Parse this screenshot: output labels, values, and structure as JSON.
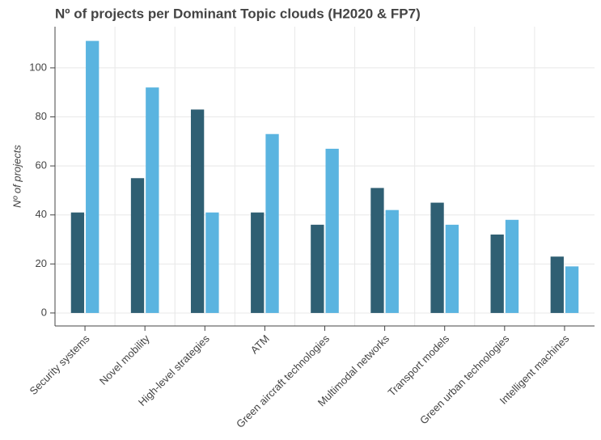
{
  "chart_data": {
    "type": "bar",
    "title": "Nº of projects per Dominant Topic clouds (H2020 & FP7)",
    "y_label": "Nº of projects",
    "categories": [
      "Security systems",
      "Novel mobility",
      "High-level strategies",
      "ATM",
      "Green aircraft technologies",
      "Multimodal networks",
      "Transport models",
      "Green urban technologies",
      "Intelligent machines"
    ],
    "series": [
      {
        "color": "#2f5f73",
        "values": [
          41,
          55,
          83,
          41,
          36,
          51,
          45,
          32,
          23
        ]
      },
      {
        "color": "#5ab4e0",
        "values": [
          111,
          92,
          41,
          73,
          67,
          42,
          36,
          38,
          19
        ]
      }
    ],
    "ylim": [
      -5.3,
      116.8
    ],
    "yticks": [
      0,
      20,
      40,
      60,
      80,
      100
    ],
    "grid": true
  }
}
